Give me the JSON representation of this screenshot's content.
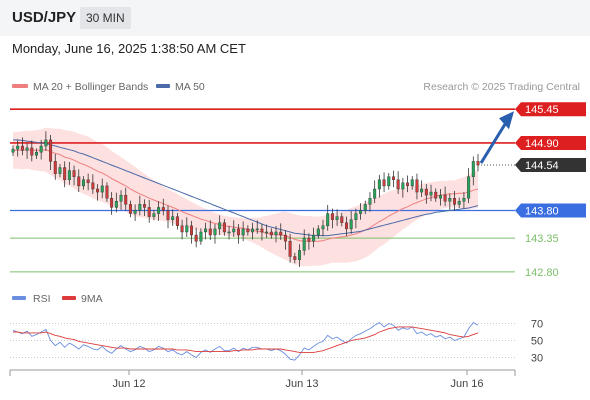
{
  "header": {
    "symbol": "USD/JPY",
    "timeframe": "30 MIN"
  },
  "datetime": "Monday, June 16, 2025 1:38:50 AM CET",
  "legend": {
    "ma20": "MA 20 + Bollinger Bands",
    "ma50": "MA 50",
    "rsi": "RSI",
    "rsi_ma": "9MA"
  },
  "copyright": "Research © 2025 Trading Central",
  "colors": {
    "ma20": "#f08080",
    "bands": "#fde0e0",
    "ma50": "#4a6aa8",
    "candle_up": "#27a35a",
    "candle_down": "#d03a3a",
    "resistance": "#dd1f1f",
    "support_blue": "#3b6ee0",
    "support_green": "#7cbf6b",
    "price_tag": "#333333",
    "rsi_line": "#6a8fe0",
    "rsi_ma_line": "#dd3b3b",
    "arrow": "#2a5fb0"
  },
  "chart_data": [
    {
      "type": "candlestick",
      "x_ticks": [
        "Jun 12",
        "Jun 13",
        "Jun 16"
      ],
      "levels": [
        {
          "value": 145.45,
          "label": "145.45",
          "kind": "resistance"
        },
        {
          "value": 144.9,
          "label": "144.90",
          "kind": "resistance"
        },
        {
          "value": 144.54,
          "label": "144.54",
          "kind": "last-price"
        },
        {
          "value": 143.8,
          "label": "143.80",
          "kind": "support"
        },
        {
          "value": 143.35,
          "label": "143.35",
          "kind": "support"
        },
        {
          "value": 142.8,
          "label": "142.80",
          "kind": "support"
        }
      ],
      "ylim": [
        142.7,
        145.6
      ],
      "close": [
        144.8,
        144.85,
        144.78,
        144.82,
        144.7,
        144.75,
        144.85,
        144.95,
        144.6,
        144.4,
        144.5,
        144.3,
        144.45,
        144.35,
        144.2,
        144.3,
        144.25,
        144.15,
        144.1,
        144.2,
        144.0,
        143.85,
        143.95,
        144.05,
        143.9,
        143.75,
        143.8,
        143.9,
        143.85,
        143.7,
        143.75,
        143.85,
        143.8,
        143.65,
        143.7,
        143.55,
        143.45,
        143.55,
        143.4,
        143.3,
        143.45,
        143.5,
        143.4,
        143.5,
        143.6,
        143.45,
        143.45,
        143.5,
        143.4,
        143.5,
        143.45,
        143.5,
        143.5,
        143.45,
        143.45,
        143.4,
        143.45,
        143.4,
        143.3,
        143.05,
        143.0,
        143.15,
        143.35,
        143.3,
        143.4,
        143.5,
        143.55,
        143.75,
        143.65,
        143.7,
        143.6,
        143.5,
        143.65,
        143.75,
        143.8,
        143.9,
        144.0,
        144.15,
        144.3,
        144.2,
        144.35,
        144.3,
        144.15,
        144.25,
        144.2,
        144.3,
        144.1,
        144.15,
        144.05,
        144.1,
        144.0,
        144.05,
        143.95,
        144.0,
        143.9,
        143.95,
        144.0,
        144.35,
        144.6,
        144.54
      ],
      "ma20": [
        144.78,
        144.78,
        144.78,
        144.79,
        144.78,
        144.78,
        144.78,
        144.79,
        144.76,
        144.73,
        144.71,
        144.67,
        144.65,
        144.62,
        144.58,
        144.55,
        144.52,
        144.48,
        144.44,
        144.41,
        144.37,
        144.32,
        144.28,
        144.24,
        144.2,
        144.15,
        144.11,
        144.07,
        144.04,
        144.0,
        143.97,
        143.94,
        143.91,
        143.88,
        143.85,
        143.82,
        143.78,
        143.75,
        143.72,
        143.69,
        143.66,
        143.64,
        143.61,
        143.59,
        143.57,
        143.55,
        143.54,
        143.53,
        143.52,
        143.51,
        143.49,
        143.48,
        143.46,
        143.45,
        143.43,
        143.42,
        143.41,
        143.4,
        143.39,
        143.36,
        143.33,
        143.31,
        143.3,
        143.3,
        143.3,
        143.3,
        143.31,
        143.33,
        143.35,
        143.36,
        143.37,
        143.38,
        143.4,
        143.42,
        143.45,
        143.48,
        143.52,
        143.57,
        143.62,
        143.66,
        143.71,
        143.75,
        143.79,
        143.83,
        143.86,
        143.9,
        143.93,
        143.96,
        143.99,
        144.01,
        144.03,
        144.05,
        144.06,
        144.07,
        144.07,
        144.08,
        144.08,
        144.1,
        144.13,
        144.15
      ],
      "ma50": [
        144.95,
        144.95,
        144.94,
        144.93,
        144.92,
        144.91,
        144.9,
        144.89,
        144.87,
        144.85,
        144.83,
        144.81,
        144.79,
        144.77,
        144.74,
        144.72,
        144.69,
        144.66,
        144.63,
        144.6,
        144.57,
        144.54,
        144.51,
        144.48,
        144.45,
        144.42,
        144.39,
        144.36,
        144.33,
        144.3,
        144.27,
        144.24,
        144.21,
        144.18,
        144.15,
        144.12,
        144.09,
        144.06,
        144.03,
        144.0,
        143.97,
        143.94,
        143.91,
        143.88,
        143.85,
        143.82,
        143.79,
        143.76,
        143.73,
        143.7,
        143.67,
        143.64,
        143.61,
        143.58,
        143.55,
        143.53,
        143.51,
        143.49,
        143.47,
        143.45,
        143.43,
        143.42,
        143.41,
        143.4,
        143.39,
        143.39,
        143.39,
        143.39,
        143.4,
        143.41,
        143.42,
        143.43,
        143.44,
        143.45,
        143.46,
        143.48,
        143.5,
        143.52,
        143.54,
        143.56,
        143.58,
        143.6,
        143.62,
        143.64,
        143.66,
        143.68,
        143.7,
        143.72,
        143.74,
        143.75,
        143.77,
        143.78,
        143.79,
        143.8,
        143.81,
        143.82,
        143.83,
        143.84,
        143.86,
        143.88
      ],
      "band_width": [
        0.3,
        0.3,
        0.31,
        0.31,
        0.32,
        0.33,
        0.34,
        0.36,
        0.38,
        0.4,
        0.42,
        0.44,
        0.45,
        0.46,
        0.47,
        0.48,
        0.48,
        0.48,
        0.47,
        0.47,
        0.46,
        0.45,
        0.44,
        0.43,
        0.42,
        0.41,
        0.4,
        0.38,
        0.36,
        0.34,
        0.32,
        0.3,
        0.28,
        0.27,
        0.26,
        0.25,
        0.24,
        0.23,
        0.22,
        0.21,
        0.2,
        0.19,
        0.18,
        0.17,
        0.17,
        0.16,
        0.16,
        0.16,
        0.16,
        0.17,
        0.18,
        0.2,
        0.22,
        0.25,
        0.28,
        0.31,
        0.34,
        0.37,
        0.39,
        0.4,
        0.41,
        0.41,
        0.41,
        0.41,
        0.4,
        0.4,
        0.4,
        0.4,
        0.4,
        0.41,
        0.42,
        0.43,
        0.44,
        0.45,
        0.45,
        0.45,
        0.44,
        0.43,
        0.42,
        0.41,
        0.4,
        0.38,
        0.36,
        0.34,
        0.32,
        0.3,
        0.28,
        0.27,
        0.26,
        0.25,
        0.24,
        0.23,
        0.22,
        0.22,
        0.22,
        0.24,
        0.26,
        0.28,
        0.3,
        0.31
      ]
    },
    {
      "type": "line",
      "name": "RSI",
      "y_ticks": [
        70,
        50,
        30
      ],
      "ylim": [
        20,
        80
      ],
      "rsi": [
        62,
        60,
        58,
        61,
        55,
        57,
        60,
        63,
        50,
        44,
        48,
        42,
        47,
        44,
        40,
        45,
        43,
        40,
        39,
        43,
        38,
        35,
        40,
        44,
        40,
        37,
        39,
        43,
        41,
        37,
        39,
        43,
        41,
        37,
        39,
        35,
        33,
        37,
        33,
        30,
        36,
        39,
        36,
        40,
        43,
        38,
        38,
        41,
        37,
        41,
        39,
        42,
        42,
        40,
        40,
        38,
        40,
        38,
        34,
        28,
        27,
        33,
        41,
        39,
        43,
        47,
        49,
        56,
        52,
        54,
        50,
        47,
        52,
        56,
        58,
        61,
        64,
        68,
        71,
        66,
        70,
        68,
        62,
        65,
        63,
        66,
        58,
        60,
        56,
        58,
        54,
        56,
        52,
        54,
        50,
        52,
        54,
        64,
        71,
        68
      ],
      "rsi_ma": [
        60,
        60,
        59,
        59,
        59,
        59,
        59,
        60,
        58,
        56,
        55,
        53,
        52,
        51,
        49,
        48,
        47,
        46,
        45,
        44,
        43,
        42,
        41,
        41,
        41,
        40,
        40,
        40,
        40,
        40,
        40,
        40,
        40,
        40,
        40,
        39,
        39,
        39,
        38,
        37,
        37,
        37,
        37,
        37,
        37,
        37,
        37,
        38,
        38,
        39,
        39,
        39,
        40,
        40,
        40,
        40,
        40,
        40,
        39,
        38,
        37,
        36,
        36,
        36,
        36,
        37,
        38,
        40,
        42,
        44,
        46,
        48,
        50,
        51,
        52,
        53,
        55,
        57,
        60,
        62,
        64,
        65,
        66,
        66,
        66,
        66,
        65,
        64,
        63,
        62,
        61,
        60,
        59,
        57,
        56,
        55,
        54,
        55,
        57,
        59
      ]
    }
  ]
}
